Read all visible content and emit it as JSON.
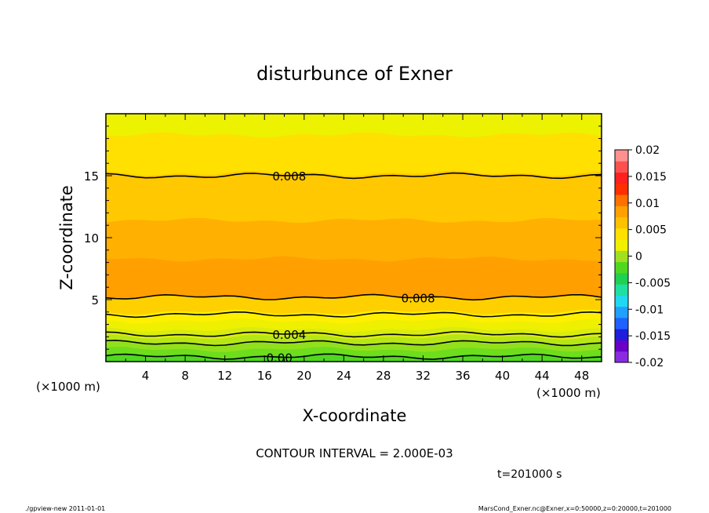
{
  "chart_data": {
    "type": "heatmap",
    "title": "disturbunce of Exner",
    "xlabel": "X-coordinate",
    "ylabel": "Z-coordinate",
    "x_unit": "(×1000 m)",
    "x_unit_right": "(×1000 m)",
    "x_ticks": [
      "4",
      "8",
      "12",
      "16",
      "20",
      "24",
      "28",
      "32",
      "36",
      "40",
      "44",
      "48"
    ],
    "y_ticks": [
      "5",
      "10",
      "15"
    ],
    "xlim": [
      0,
      50
    ],
    "ylim": [
      0,
      20
    ],
    "x_tick_values": [
      4,
      8,
      12,
      16,
      20,
      24,
      28,
      32,
      36,
      40,
      44,
      48
    ],
    "y_tick_values": [
      5,
      10,
      15
    ],
    "colorbar": {
      "ticks": [
        "0.02",
        "0.015",
        "0.01",
        "0.005",
        "0",
        "-0.005",
        "-0.01",
        "-0.015",
        "-0.02"
      ],
      "range": [
        -0.02,
        0.02
      ],
      "colors": [
        "#8a2be2",
        "#6a00c8",
        "#1e1edc",
        "#2060ff",
        "#20a0ff",
        "#20d8f0",
        "#20e0a0",
        "#20d050",
        "#50d820",
        "#a0e020",
        "#f0f000",
        "#ffe000",
        "#ffc000",
        "#ffa000",
        "#ff7000",
        "#ff3000",
        "#ff2020",
        "#ff5050",
        "#ff9090"
      ]
    },
    "bands": [
      {
        "z": [
          0.0,
          0.5
        ],
        "value": 0.0,
        "color": "#50d820"
      },
      {
        "z": [
          0.5,
          1.0
        ],
        "value": 0.001,
        "color": "#6edd1c"
      },
      {
        "z": [
          1.0,
          1.5
        ],
        "value": 0.002,
        "color": "#92e01c"
      },
      {
        "z": [
          1.5,
          2.0
        ],
        "value": 0.003,
        "color": "#b6e616"
      },
      {
        "z": [
          2.0,
          2.6
        ],
        "value": 0.004,
        "color": "#d8ec10"
      },
      {
        "z": [
          2.6,
          3.3
        ],
        "value": 0.005,
        "color": "#eef000"
      },
      {
        "z": [
          3.3,
          4.0
        ],
        "value": 0.006,
        "color": "#fff000"
      },
      {
        "z": [
          4.0,
          5.2
        ],
        "value": 0.008,
        "color": "#ffd000"
      },
      {
        "z": [
          5.2,
          8.3
        ],
        "value": 0.009,
        "color": "#ffa000"
      },
      {
        "z": [
          8.3,
          11.4
        ],
        "value": 0.0085,
        "color": "#ffb000"
      },
      {
        "z": [
          11.4,
          15.2
        ],
        "value": 0.008,
        "color": "#ffc800"
      },
      {
        "z": [
          15.2,
          18.3
        ],
        "value": 0.007,
        "color": "#ffe000"
      },
      {
        "z": [
          18.3,
          20.0
        ],
        "value": 0.006,
        "color": "#ecf200"
      }
    ],
    "contours": [
      {
        "z": 15.0,
        "value": "0.008",
        "label": "0.008",
        "label_x": 18.5
      },
      {
        "z": 5.2,
        "value": "0.008",
        "label": "0.008",
        "label_x": 31.5
      },
      {
        "z": 3.8,
        "value": "",
        "label": "",
        "label_x": null
      },
      {
        "z": 2.2,
        "value": "0.004",
        "label": "0.004",
        "label_x": 18.5
      },
      {
        "z": 1.5,
        "value": "",
        "label": "",
        "label_x": null
      },
      {
        "z": 0.4,
        "value": "0.00",
        "label": "0.00",
        "label_x": 17.5
      }
    ],
    "annotation": "CONTOUR INTERVAL = 2.000E-03",
    "time_label": "t=201000 s"
  },
  "footer": {
    "left": "./gpview-new   2011-01-01",
    "right": "MarsCond_Exner.nc@Exner,x=0:50000,z=0:20000,t=201000"
  }
}
